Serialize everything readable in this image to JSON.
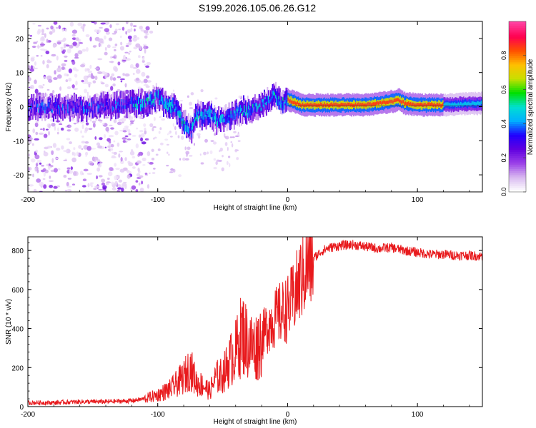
{
  "title": "S199.2026.105.06.26.G12",
  "chart_data": [
    {
      "type": "heatmap",
      "title": "S199.2026.105.06.26.G12",
      "xlabel": "Height of straight line (km)",
      "ylabel": "Frequency (Hz)",
      "xlim": [
        -200,
        150
      ],
      "ylim": [
        -25,
        25
      ],
      "xticks": [
        "-200",
        "-100",
        "0",
        "100"
      ],
      "xtick_values": [
        -200,
        -100,
        0,
        100
      ],
      "yticks": [
        "-20",
        "-10",
        "0",
        "10",
        "20"
      ],
      "ytick_values": [
        -20,
        -10,
        0,
        10,
        20
      ],
      "colorbar": {
        "label": "Normalized spectral amplitude",
        "range": [
          0,
          1
        ],
        "ticks": [
          "0.0",
          "0.2",
          "0.4",
          "0.6",
          "0.8"
        ],
        "tick_values": [
          0.0,
          0.2,
          0.4,
          0.6,
          0.8
        ],
        "colors": [
          "#ffffff",
          "#d8b8f0",
          "#9a40e8",
          "#6000e0",
          "#2000ff",
          "#00b0ff",
          "#00e0d0",
          "#00e000",
          "#c8e000",
          "#ffc000",
          "#ff5000",
          "#ff0050",
          "#ff40a0"
        ]
      },
      "ridge": {
        "x": [
          -200,
          -175,
          -150,
          -125,
          -110,
          -100,
          -95,
          -85,
          -80,
          -75,
          -70,
          -65,
          -60,
          -55,
          -50,
          -45,
          -40,
          -35,
          -30,
          -25,
          -20,
          -15,
          -10,
          -5,
          0,
          10,
          20,
          40,
          60,
          80,
          85,
          90,
          100,
          120,
          150
        ],
        "y": [
          0,
          -0.5,
          0,
          0.5,
          1,
          3,
          1,
          -1,
          -5,
          -7,
          -2,
          -3,
          -2,
          -4,
          -3,
          -3,
          -2,
          -1,
          -1,
          0,
          0.5,
          2,
          3,
          1,
          2,
          0.5,
          0.5,
          0.5,
          0.5,
          1.5,
          2,
          1,
          0.5,
          0.5,
          1
        ]
      },
      "amplitude_bands": [
        {
          "x_range": [
            -200,
            -120
          ],
          "level": "low, scattered noise"
        },
        {
          "x_range": [
            -120,
            0
          ],
          "level": "low to medium"
        },
        {
          "x_range": [
            0,
            120
          ],
          "level": "high"
        },
        {
          "x_range": [
            120,
            150
          ],
          "level": "medium"
        }
      ]
    },
    {
      "type": "line",
      "xlabel": "Height of straight line (km)",
      "ylabel": "SNR (10 * v/v)",
      "xlim": [
        -200,
        150
      ],
      "ylim": [
        0,
        870
      ],
      "xticks": [
        "-200",
        "-100",
        "0",
        "100"
      ],
      "xtick_values": [
        -200,
        -100,
        0,
        100
      ],
      "yticks": [
        "0",
        "200",
        "400",
        "600",
        "800"
      ],
      "ytick_values": [
        0,
        200,
        400,
        600,
        800
      ],
      "series": [
        {
          "name": "SNR",
          "color": "#e8191c",
          "x": [
            -200,
            -180,
            -160,
            -140,
            -120,
            -110,
            -100,
            -90,
            -80,
            -75,
            -70,
            -65,
            -60,
            -55,
            -50,
            -45,
            -40,
            -35,
            -30,
            -25,
            -20,
            -15,
            -10,
            -5,
            0,
            5,
            10,
            15,
            20,
            25,
            30,
            40,
            50,
            60,
            70,
            80,
            90,
            100,
            110,
            120,
            130,
            140,
            150
          ],
          "y": [
            20,
            20,
            25,
            25,
            30,
            40,
            60,
            90,
            150,
            200,
            120,
            110,
            80,
            150,
            160,
            230,
            280,
            380,
            320,
            300,
            350,
            420,
            450,
            480,
            500,
            560,
            650,
            720,
            760,
            790,
            810,
            825,
            830,
            820,
            810,
            815,
            800,
            790,
            780,
            780,
            775,
            775,
            770
          ]
        }
      ]
    }
  ]
}
